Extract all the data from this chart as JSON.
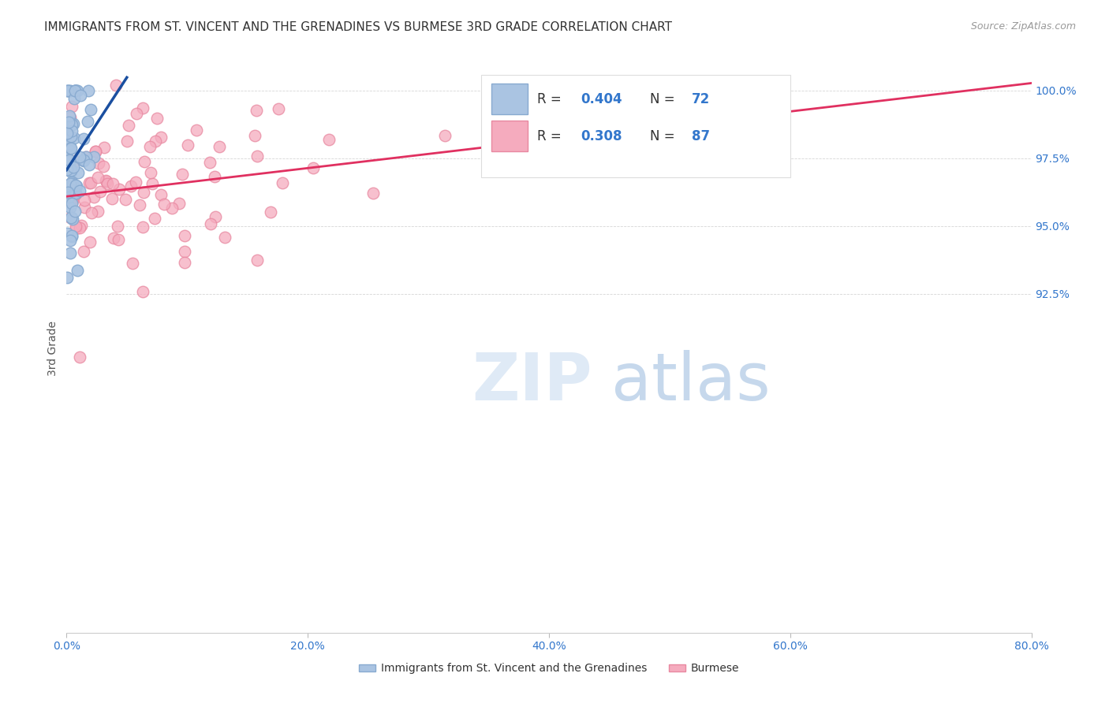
{
  "title": "IMMIGRANTS FROM ST. VINCENT AND THE GRENADINES VS BURMESE 3RD GRADE CORRELATION CHART",
  "source": "Source: ZipAtlas.com",
  "ylabel": "3rd Grade",
  "xlim": [
    0.0,
    80.0
  ],
  "ylim": [
    80.0,
    101.0
  ],
  "yticks": [
    92.5,
    95.0,
    97.5,
    100.0
  ],
  "xticks": [
    0.0,
    20.0,
    40.0,
    60.0,
    80.0
  ],
  "ytick_labels": [
    "92.5%",
    "95.0%",
    "97.5%",
    "100.0%"
  ],
  "blue_R": 0.404,
  "blue_N": 72,
  "pink_R": 0.308,
  "pink_N": 87,
  "blue_color": "#aac4e2",
  "pink_color": "#f5abbe",
  "blue_edge": "#88aad0",
  "pink_edge": "#e888a0",
  "blue_line_color": "#1a4fa0",
  "pink_line_color": "#e03060",
  "legend_blue_label": "Immigrants from St. Vincent and the Grenadines",
  "legend_pink_label": "Burmese",
  "marker_size": 110
}
